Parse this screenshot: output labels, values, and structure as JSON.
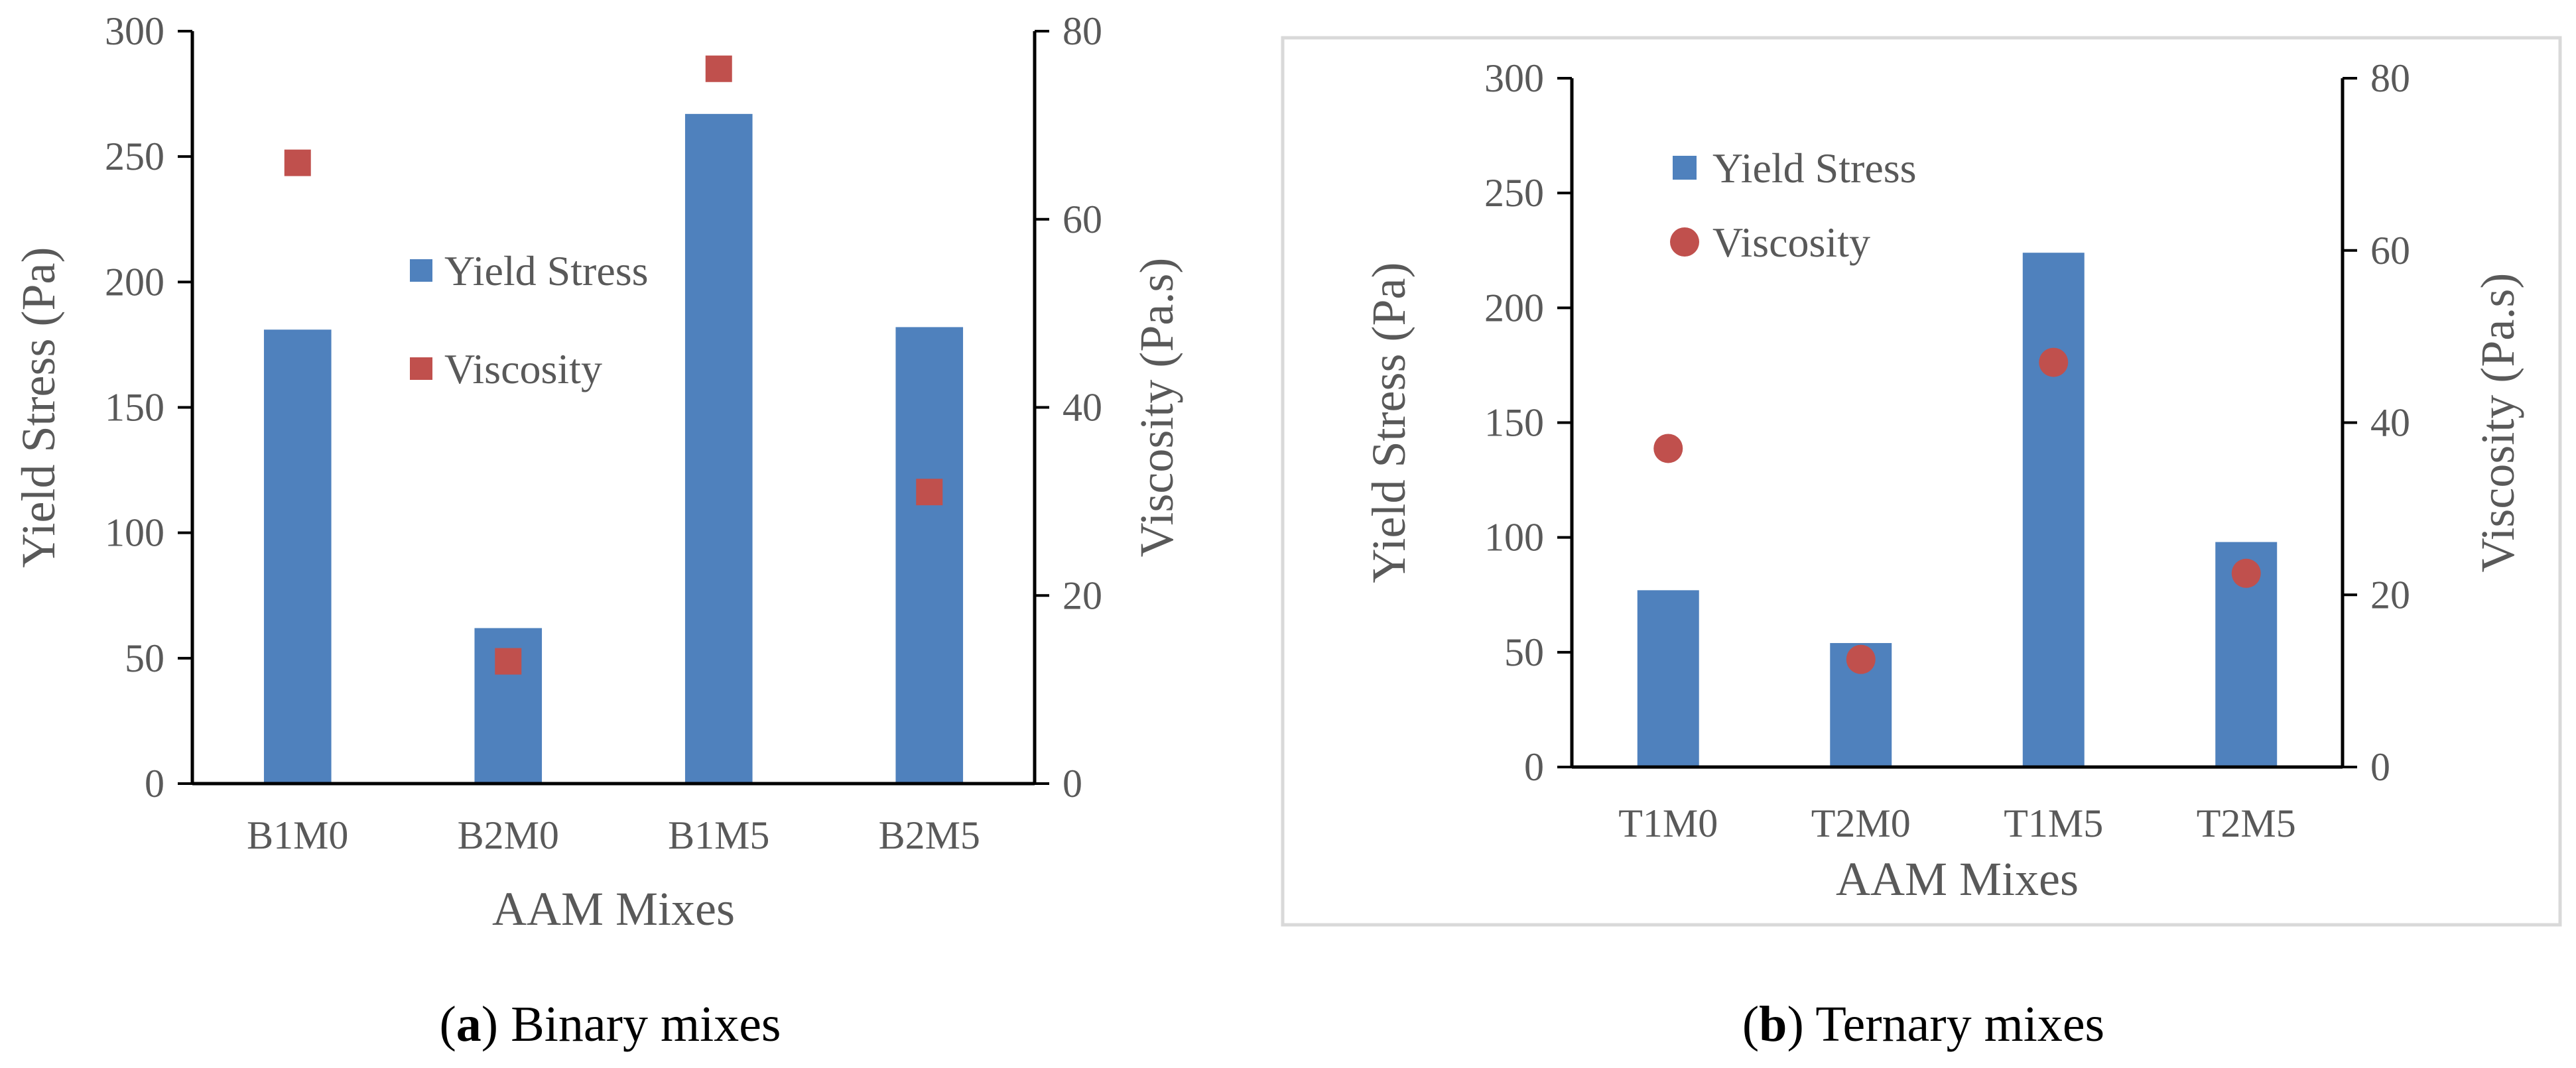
{
  "figure": {
    "captions": [
      {
        "letter": "a",
        "text": " Binary mixes"
      },
      {
        "letter": "b",
        "text": " Ternary mixes"
      }
    ]
  },
  "chart_data": [
    {
      "type": "bar",
      "combo": "bar + scatter on secondary axis",
      "title": "",
      "categories": [
        "B1M0",
        "B2M0",
        "B1M5",
        "B2M5"
      ],
      "series": [
        {
          "name": "Yield Stress",
          "kind": "bar",
          "axis": "left",
          "color": "#4F81BD",
          "marker": "bar",
          "values": [
            181,
            62,
            267,
            182
          ]
        },
        {
          "name": "Viscosity",
          "kind": "scatter",
          "axis": "right",
          "color": "#C0504D",
          "marker": "square",
          "values": [
            66,
            13,
            76,
            31
          ]
        }
      ],
      "xlabel": "AAM Mixes",
      "ylabel": "Yield Stress (Pa)",
      "y2label": "Viscosity (Pa.s)",
      "ylim": [
        0,
        300
      ],
      "y2lim": [
        0,
        80
      ],
      "yticks": [
        0,
        50,
        100,
        150,
        200,
        250,
        300
      ],
      "y2ticks": [
        0,
        20,
        40,
        60,
        80
      ],
      "grid": false,
      "legend": "center"
    },
    {
      "type": "bar",
      "combo": "bar + scatter on secondary axis",
      "title": "",
      "categories": [
        "T1M0",
        "T2M0",
        "T1M5",
        "T2M5"
      ],
      "series": [
        {
          "name": "Yield Stress",
          "kind": "bar",
          "axis": "left",
          "color": "#4F81BD",
          "marker": "bar",
          "values": [
            77,
            54,
            224,
            98
          ]
        },
        {
          "name": "Viscosity",
          "kind": "scatter",
          "axis": "right",
          "color": "#C0504D",
          "marker": "circle",
          "values": [
            37,
            12.5,
            47,
            22.5
          ]
        }
      ],
      "xlabel": "AAM Mixes",
      "ylabel": "Yield Stress (Pa)",
      "y2label": "Viscosity (Pa.s)",
      "ylim": [
        0,
        300
      ],
      "y2lim": [
        0,
        80
      ],
      "yticks": [
        0,
        50,
        100,
        150,
        200,
        250,
        300
      ],
      "y2ticks": [
        0,
        20,
        40,
        60,
        80
      ],
      "grid": false,
      "legend": "top-left"
    }
  ]
}
